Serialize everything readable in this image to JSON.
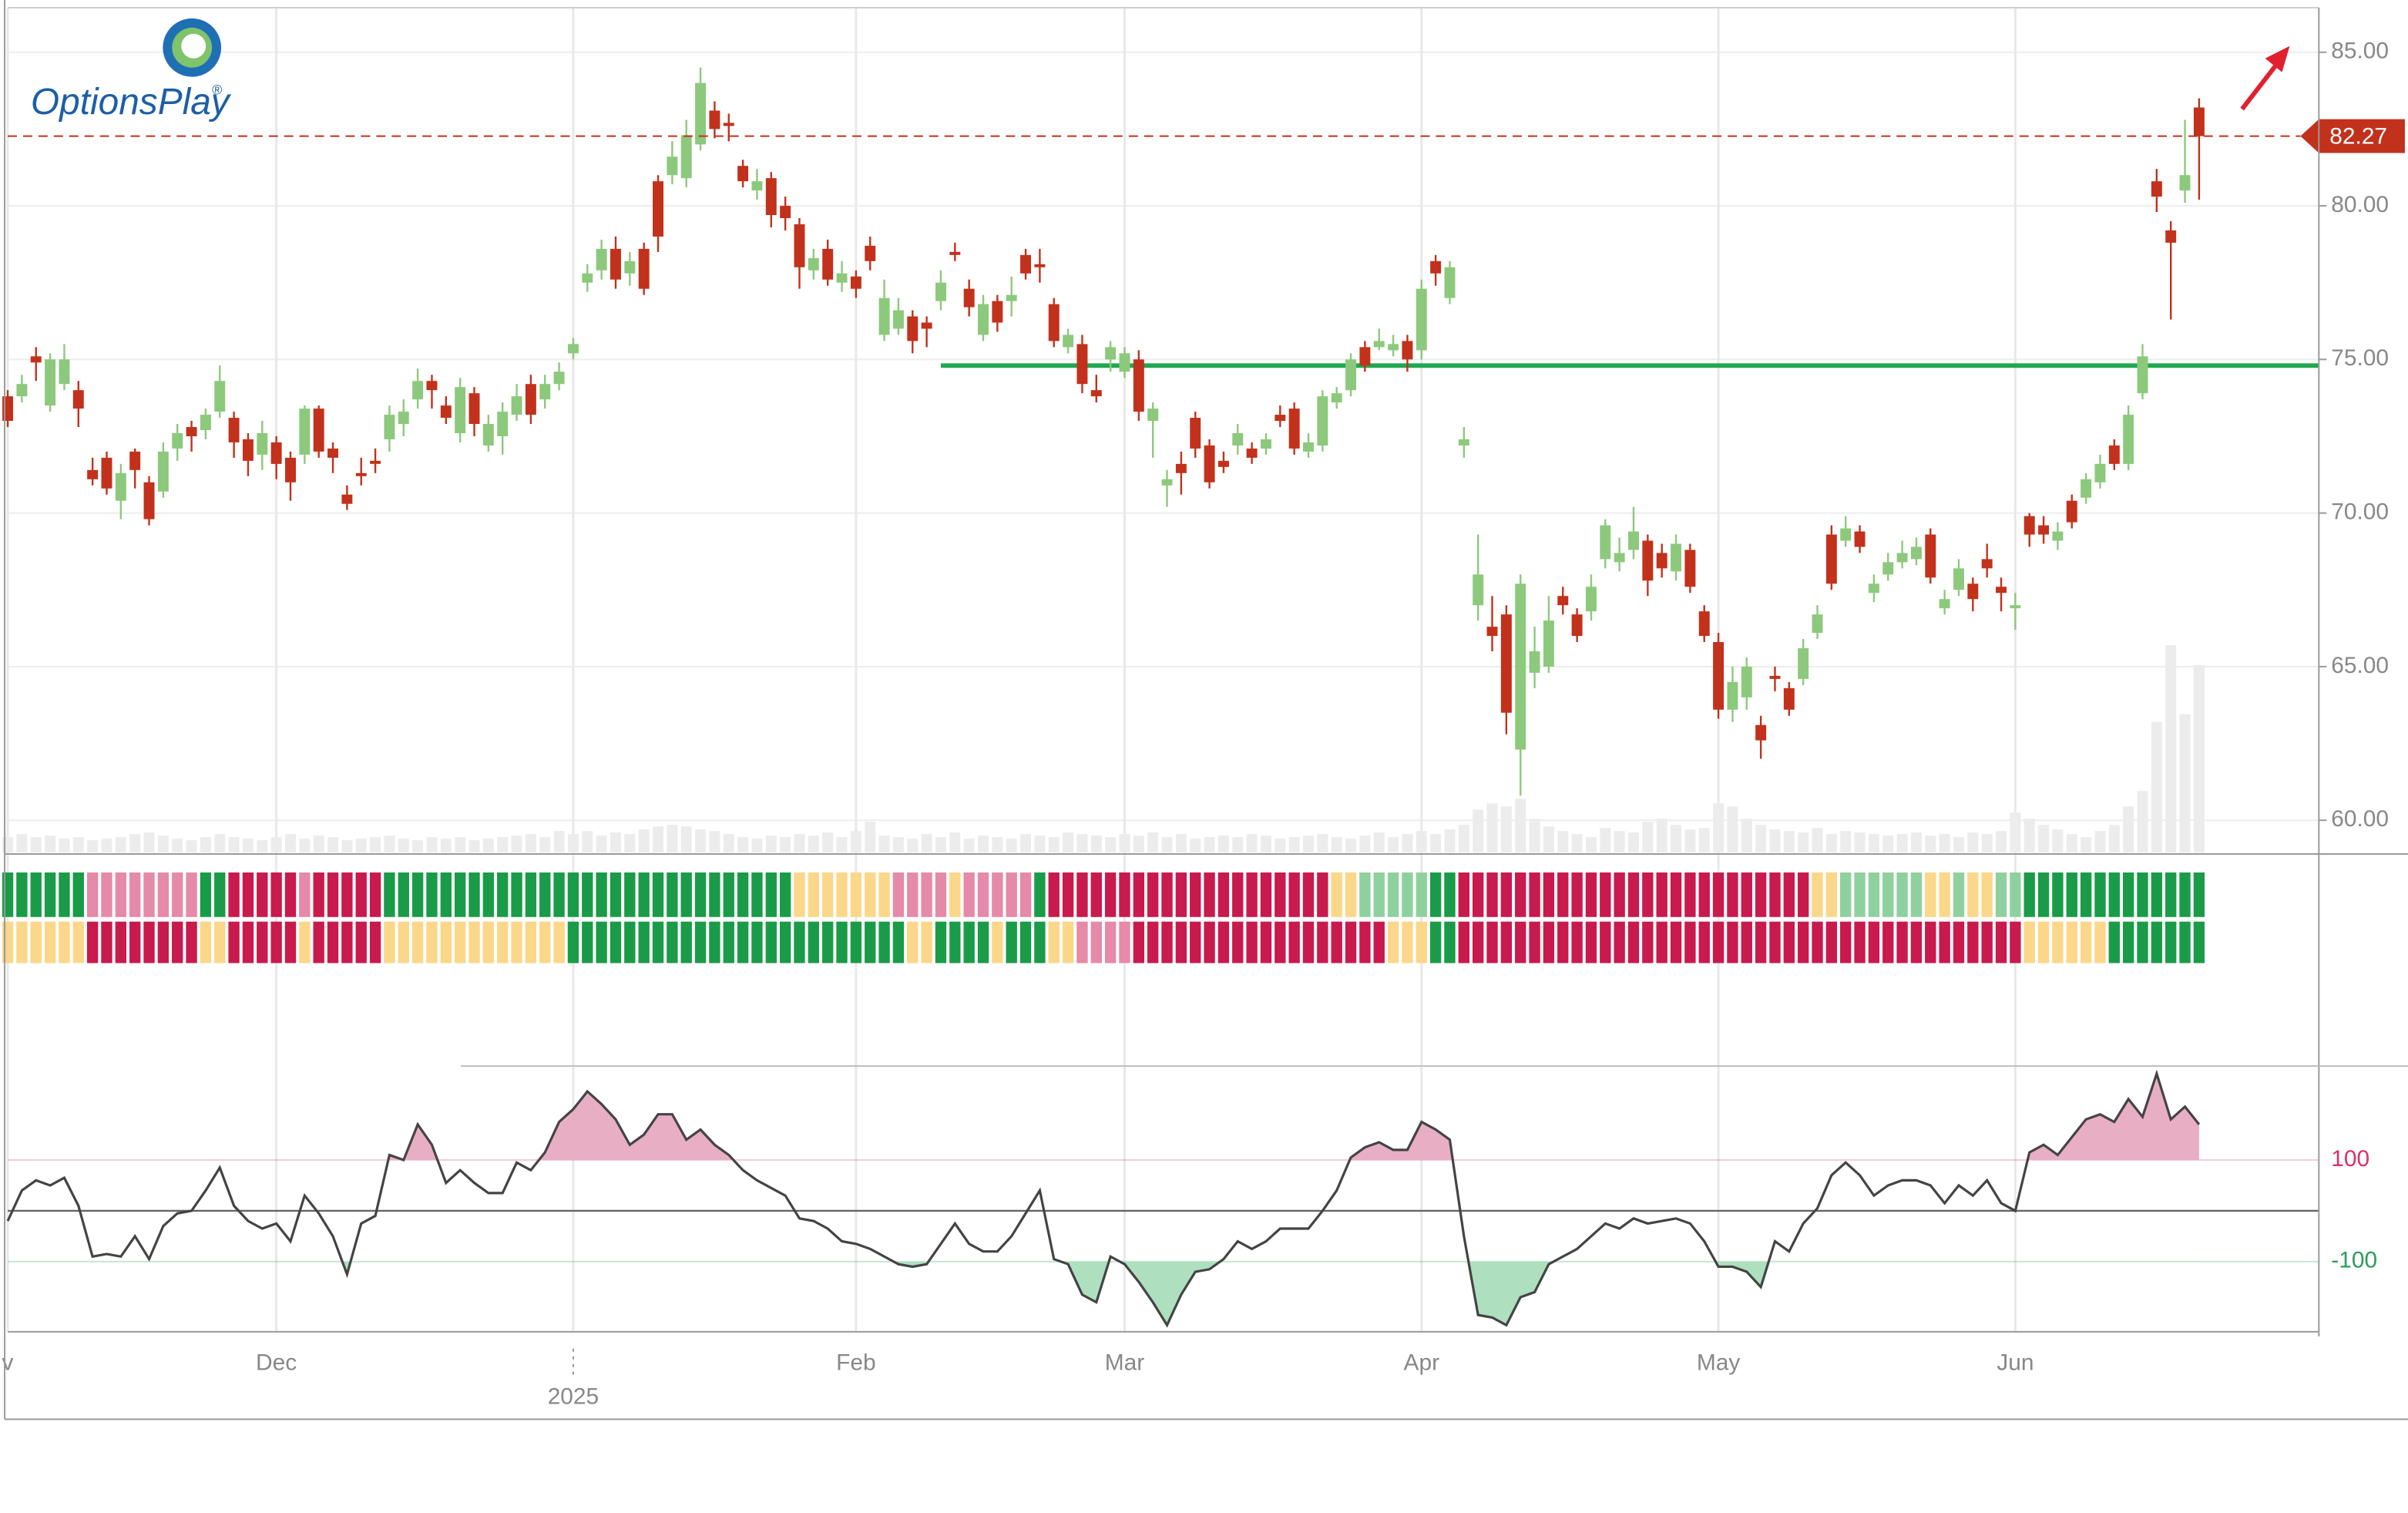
{
  "logo": {
    "text": "OptionsPlay",
    "mark": "®"
  },
  "chart_data": {
    "type": "candlestick",
    "categories": [
      "v",
      null,
      null,
      null,
      null,
      null,
      null,
      null,
      null,
      null,
      null,
      null,
      null,
      null,
      null,
      null,
      null,
      null,
      null,
      "Dec",
      null,
      null,
      null,
      null,
      null,
      null,
      null,
      null,
      null,
      null,
      null,
      null,
      null,
      null,
      null,
      null,
      null,
      null,
      null,
      null,
      "2025",
      null,
      null,
      null,
      null,
      null,
      null,
      null,
      null,
      null,
      null,
      null,
      null,
      null,
      null,
      null,
      null,
      null,
      null,
      null,
      "Feb",
      null,
      null,
      null,
      null,
      null,
      null,
      null,
      null,
      null,
      null,
      null,
      null,
      null,
      null,
      null,
      null,
      null,
      null,
      "Mar",
      null,
      null,
      null,
      null,
      null,
      null,
      null,
      null,
      null,
      null,
      null,
      null,
      null,
      null,
      null,
      null,
      null,
      null,
      null,
      null,
      "Apr",
      null,
      null,
      null,
      null,
      null,
      null,
      null,
      null,
      null,
      null,
      null,
      null,
      null,
      null,
      null,
      null,
      null,
      null,
      null,
      null,
      "May",
      null,
      null,
      null,
      null,
      null,
      null,
      null,
      null,
      null,
      null,
      null,
      null,
      null,
      null,
      null,
      null,
      null,
      null,
      null,
      null,
      "Jun",
      null,
      null,
      null,
      null,
      null,
      null,
      null,
      null,
      null,
      null,
      null,
      null,
      null
    ],
    "open": [
      73.8,
      73.8,
      75.1,
      73.5,
      74.2,
      74.0,
      71.4,
      71.8,
      70.4,
      72.0,
      71.0,
      70.7,
      72.1,
      72.8,
      72.7,
      73.3,
      73.1,
      72.4,
      71.9,
      72.3,
      71.8,
      71.9,
      73.4,
      72.1,
      70.6,
      71.3,
      71.7,
      72.4,
      72.9,
      73.7,
      74.3,
      73.5,
      72.6,
      73.9,
      72.2,
      72.5,
      73.2,
      74.2,
      73.7,
      74.2,
      75.2,
      77.5,
      77.9,
      78.6,
      77.8,
      78.6,
      80.8,
      81.0,
      80.9,
      82.0,
      83.1,
      82.7,
      81.3,
      80.5,
      80.9,
      80.0,
      79.4,
      77.9,
      78.6,
      77.5,
      77.7,
      78.7,
      75.8,
      76.0,
      76.4,
      76.2,
      76.9,
      78.5,
      77.3,
      75.8,
      76.9,
      76.9,
      78.4,
      78.1,
      76.8,
      75.4,
      75.5,
      74.0,
      75.0,
      74.6,
      75.0,
      73.0,
      70.9,
      71.6,
      73.1,
      72.2,
      71.7,
      72.2,
      72.1,
      72.1,
      73.2,
      73.4,
      72.0,
      72.2,
      73.6,
      74.0,
      75.4,
      75.4,
      75.3,
      75.6,
      75.3,
      78.2,
      77.0,
      72.2,
      67.0,
      66.3,
      66.7,
      62.3,
      64.8,
      65.0,
      67.3,
      66.7,
      66.8,
      68.5,
      68.4,
      68.8,
      69.1,
      68.7,
      68.1,
      68.8,
      66.8,
      65.8,
      63.6,
      64.0,
      63.1,
      64.7,
      64.3,
      64.6,
      66.1,
      69.3,
      69.1,
      69.4,
      67.4,
      68.0,
      68.4,
      68.5,
      69.3,
      66.9,
      67.5,
      67.7,
      68.5,
      67.6,
      66.9,
      69.9,
      69.6,
      69.1,
      70.4,
      70.5,
      71.0,
      72.2,
      71.6,
      73.9,
      80.8,
      79.2,
      80.5,
      83.2
    ],
    "high": [
      74.0,
      74.5,
      75.4,
      75.2,
      75.5,
      74.3,
      71.8,
      72.0,
      71.6,
      72.1,
      71.2,
      72.3,
      72.9,
      73.0,
      73.4,
      74.8,
      73.3,
      72.6,
      73.0,
      72.5,
      72.0,
      73.5,
      73.5,
      72.3,
      70.9,
      71.8,
      72.1,
      73.5,
      73.7,
      74.7,
      74.5,
      73.8,
      74.4,
      74.1,
      73.2,
      73.6,
      74.2,
      74.5,
      74.5,
      74.9,
      75.7,
      78.1,
      78.9,
      79.0,
      78.5,
      78.8,
      81.0,
      82.1,
      82.8,
      84.5,
      83.4,
      83.0,
      81.5,
      81.2,
      81.1,
      80.3,
      79.6,
      78.6,
      78.9,
      78.2,
      77.9,
      79.0,
      77.6,
      77.0,
      76.6,
      76.4,
      77.9,
      78.8,
      77.6,
      77.1,
      77.1,
      77.7,
      78.6,
      78.6,
      77.0,
      76.0,
      75.8,
      74.5,
      75.6,
      75.4,
      75.3,
      73.6,
      71.4,
      72.0,
      73.3,
      72.4,
      72.0,
      72.9,
      72.3,
      72.6,
      73.5,
      73.6,
      72.6,
      74.0,
      74.1,
      75.2,
      75.6,
      76.0,
      75.8,
      75.8,
      77.6,
      78.4,
      78.2,
      72.8,
      69.3,
      67.3,
      67.0,
      68.0,
      66.3,
      67.3,
      67.6,
      66.9,
      68.0,
      69.8,
      69.2,
      70.2,
      69.3,
      69.0,
      69.3,
      69.0,
      67.0,
      66.1,
      65.0,
      65.3,
      63.4,
      65.0,
      64.5,
      65.9,
      67.0,
      69.6,
      69.9,
      69.6,
      68.0,
      68.7,
      69.1,
      69.2,
      69.5,
      67.5,
      68.5,
      67.9,
      69.0,
      67.9,
      67.4,
      70.0,
      69.9,
      69.7,
      70.6,
      71.3,
      71.9,
      72.4,
      73.5,
      75.5,
      81.2,
      79.5,
      82.8,
      83.5
    ],
    "low": [
      72.8,
      73.6,
      74.3,
      73.3,
      74.0,
      72.8,
      70.9,
      70.6,
      69.8,
      70.8,
      69.6,
      70.5,
      71.7,
      72.0,
      72.4,
      73.1,
      71.8,
      71.2,
      71.4,
      71.1,
      70.4,
      71.6,
      71.8,
      71.3,
      70.1,
      70.9,
      71.3,
      72.0,
      72.5,
      73.4,
      73.4,
      72.9,
      72.3,
      72.5,
      72.0,
      71.9,
      73.0,
      72.9,
      73.4,
      74.0,
      75.0,
      77.2,
      77.6,
      77.3,
      77.4,
      77.1,
      78.5,
      80.7,
      80.6,
      81.8,
      82.2,
      82.1,
      80.6,
      80.2,
      79.3,
      79.2,
      77.3,
      77.6,
      77.4,
      77.2,
      77.0,
      77.9,
      75.6,
      75.8,
      75.2,
      75.4,
      76.6,
      78.2,
      76.4,
      75.6,
      75.9,
      76.4,
      77.6,
      77.5,
      75.4,
      75.2,
      73.9,
      73.6,
      74.6,
      74.4,
      73.0,
      71.8,
      70.2,
      70.6,
      71.8,
      70.8,
      71.3,
      71.9,
      71.6,
      71.9,
      72.8,
      71.9,
      71.8,
      72.0,
      73.4,
      73.8,
      74.6,
      75.3,
      75.1,
      74.6,
      75.0,
      77.4,
      76.8,
      71.8,
      66.5,
      65.5,
      62.8,
      60.8,
      64.3,
      64.8,
      66.7,
      65.8,
      66.5,
      68.2,
      68.1,
      68.5,
      67.3,
      67.9,
      67.8,
      67.4,
      65.8,
      63.3,
      63.2,
      63.6,
      62.0,
      64.2,
      63.4,
      64.4,
      65.9,
      67.5,
      68.9,
      68.7,
      67.1,
      67.8,
      68.2,
      68.3,
      67.7,
      66.7,
      67.3,
      66.8,
      67.9,
      66.8,
      66.2,
      68.9,
      69.0,
      68.8,
      69.5,
      70.3,
      70.8,
      71.4,
      71.4,
      73.7,
      79.8,
      76.3,
      80.1,
      80.2
    ],
    "close": [
      73.0,
      74.2,
      74.9,
      75.0,
      75.0,
      73.4,
      71.1,
      70.8,
      71.3,
      71.4,
      69.8,
      72.0,
      72.6,
      72.5,
      73.2,
      74.3,
      72.3,
      71.7,
      72.6,
      71.6,
      71.0,
      73.4,
      72.0,
      71.8,
      70.3,
      71.2,
      71.6,
      73.2,
      73.3,
      74.3,
      74.0,
      73.1,
      74.1,
      72.9,
      72.9,
      73.3,
      73.8,
      73.2,
      74.2,
      74.6,
      75.5,
      77.8,
      78.6,
      77.6,
      78.2,
      77.3,
      79.0,
      81.6,
      82.3,
      84.0,
      82.5,
      82.6,
      80.8,
      80.8,
      79.7,
      79.6,
      78.0,
      78.3,
      77.6,
      77.8,
      77.3,
      78.2,
      77.0,
      76.6,
      75.6,
      76.0,
      77.5,
      78.4,
      76.7,
      76.8,
      76.2,
      77.1,
      77.8,
      78.0,
      75.6,
      75.8,
      74.2,
      73.8,
      75.4,
      75.2,
      73.3,
      73.4,
      71.1,
      71.3,
      72.1,
      71.0,
      71.5,
      72.6,
      71.8,
      72.4,
      73.0,
      72.1,
      72.3,
      73.8,
      73.9,
      75.0,
      74.8,
      75.6,
      75.5,
      75.0,
      77.3,
      77.8,
      78.0,
      72.4,
      68.0,
      66.0,
      63.5,
      67.7,
      65.5,
      66.5,
      67.0,
      66.0,
      67.6,
      69.6,
      68.7,
      69.4,
      67.8,
      68.2,
      69.0,
      67.6,
      66.0,
      63.6,
      64.5,
      65.0,
      62.6,
      64.6,
      63.6,
      65.6,
      66.7,
      67.7,
      69.5,
      68.9,
      67.7,
      68.4,
      68.7,
      68.9,
      67.9,
      67.2,
      68.2,
      67.2,
      68.2,
      67.4,
      67.0,
      69.3,
      69.3,
      69.4,
      69.7,
      71.1,
      71.6,
      71.6,
      73.2,
      75.1,
      80.3,
      78.8,
      81.0,
      82.27
    ],
    "up_color": "#8cc97c",
    "down_color": "#c2311b",
    "ylim": [
      58.9,
      86.45
    ],
    "yticks": [
      {
        "value": 60,
        "label": "60.00"
      },
      {
        "value": 65,
        "label": "65.00"
      },
      {
        "value": 70,
        "label": "70.00"
      },
      {
        "value": 75,
        "label": "75.00"
      },
      {
        "value": 80,
        "label": "80.00"
      },
      {
        "value": 85,
        "label": "85.00"
      }
    ],
    "grid": true,
    "last_price": 82.27,
    "last_price_color": "#c2311b",
    "level_line": {
      "value": 74.8,
      "from": 66,
      "color": "#1fa84f"
    },
    "volume": {
      "color": "#ececec",
      "values": [
        10,
        12,
        10,
        11,
        9,
        10,
        8,
        9,
        10,
        12,
        13,
        11,
        9,
        8,
        10,
        12,
        10,
        9,
        8,
        10,
        12,
        9,
        11,
        10,
        8,
        9,
        10,
        11,
        9,
        8,
        10,
        9,
        10,
        8,
        9,
        10,
        11,
        12,
        10,
        14,
        12,
        14,
        11,
        13,
        12,
        15,
        17,
        18,
        17,
        15,
        14,
        12,
        10,
        9,
        11,
        10,
        12,
        11,
        13,
        10,
        14,
        20,
        11,
        10,
        9,
        12,
        10,
        13,
        9,
        11,
        10,
        9,
        12,
        11,
        10,
        13,
        12,
        11,
        10,
        12,
        11,
        13,
        10,
        12,
        9,
        10,
        11,
        10,
        12,
        11,
        9,
        10,
        11,
        12,
        10,
        9,
        11,
        13,
        10,
        12,
        14,
        12,
        15,
        18,
        28,
        32,
        30,
        35,
        22,
        17,
        14,
        12,
        10,
        16,
        14,
        13,
        20,
        22,
        18,
        15,
        16,
        32,
        30,
        22,
        18,
        15,
        14,
        13,
        16,
        12,
        14,
        13,
        12,
        11,
        12,
        13,
        11,
        12,
        10,
        13,
        12,
        14,
        26,
        22,
        18,
        15,
        12,
        10,
        14,
        18,
        30,
        40,
        85,
        135,
        90,
        122
      ]
    },
    "heat_strips": [
      {
        "runs": [
          {
            "color": "#1a9b48",
            "length": 6
          },
          {
            "color": "#e58aa8",
            "length": 8
          },
          {
            "color": "#1a9b48",
            "length": 2
          },
          {
            "color": "#c81a4c",
            "length": 5
          },
          {
            "color": "#e58aa8",
            "length": 1
          },
          {
            "color": "#c81a4c",
            "length": 5
          },
          {
            "color": "#1a9b48",
            "length": 29
          },
          {
            "color": "#fbd78a",
            "length": 7
          },
          {
            "color": "#e58aa8",
            "length": 4
          },
          {
            "color": "#fbd78a",
            "length": 1
          },
          {
            "color": "#e58aa8",
            "length": 5
          },
          {
            "color": "#1a9b48",
            "length": 1
          },
          {
            "color": "#c81a4c",
            "length": 20
          },
          {
            "color": "#fbd78a",
            "length": 2
          },
          {
            "color": "#8fd19e",
            "length": 5
          },
          {
            "color": "#1a9b48",
            "length": 2
          },
          {
            "color": "#c81a4c",
            "length": 25
          },
          {
            "color": "#fbd78a",
            "length": 2
          },
          {
            "color": "#8fd19e",
            "length": 6
          },
          {
            "color": "#fbd78a",
            "length": 2
          },
          {
            "color": "#8fd19e",
            "length": 1
          },
          {
            "color": "#fbd78a",
            "length": 2
          },
          {
            "color": "#8fd19e",
            "length": 2
          },
          {
            "color": "#1a9b48",
            "length": 13
          }
        ]
      },
      {
        "runs": [
          {
            "color": "#fbd78a",
            "length": 6
          },
          {
            "color": "#c81a4c",
            "length": 8
          },
          {
            "color": "#fbd78a",
            "length": 2
          },
          {
            "color": "#c81a4c",
            "length": 5
          },
          {
            "color": "#fbd78a",
            "length": 1
          },
          {
            "color": "#c81a4c",
            "length": 5
          },
          {
            "color": "#fbd78a",
            "length": 13
          },
          {
            "color": "#1a9b48",
            "length": 24
          },
          {
            "color": "#fbd78a",
            "length": 2
          },
          {
            "color": "#1a9b48",
            "length": 4
          },
          {
            "color": "#fbd78a",
            "length": 1
          },
          {
            "color": "#1a9b48",
            "length": 3
          },
          {
            "color": "#fbd78a",
            "length": 2
          },
          {
            "color": "#e58aa8",
            "length": 4
          },
          {
            "color": "#c81a4c",
            "length": 18
          },
          {
            "color": "#fbd78a",
            "length": 3
          },
          {
            "color": "#1a9b48",
            "length": 2
          },
          {
            "color": "#c81a4c",
            "length": 40
          },
          {
            "color": "#fbd78a",
            "length": 6
          },
          {
            "color": "#1a9b48",
            "length": 7
          }
        ]
      }
    ],
    "indicator": {
      "type": "line",
      "color": "#444444",
      "ylim": [
        -238,
        282
      ],
      "yticks": [
        100,
        -100
      ],
      "ytick_colors": [
        "#d6336c",
        "#2a9d5c"
      ],
      "zero": 0,
      "upper_fill": "#e8afc4",
      "lower_fill": "#aee0c0",
      "values": [
        -20,
        40,
        60,
        50,
        65,
        10,
        -90,
        -85,
        -90,
        -50,
        -95,
        -30,
        -5,
        0,
        40,
        85,
        10,
        -20,
        -35,
        -25,
        -60,
        30,
        -5,
        -50,
        -125,
        -25,
        -10,
        110,
        100,
        170,
        130,
        55,
        80,
        55,
        35,
        35,
        95,
        80,
        115,
        175,
        200,
        235,
        210,
        180,
        130,
        150,
        190,
        190,
        140,
        160,
        130,
        110,
        80,
        60,
        45,
        30,
        -15,
        -20,
        -35,
        -60,
        -65,
        -75,
        -90,
        -105,
        -110,
        -105,
        -65,
        -25,
        -65,
        -80,
        -80,
        -50,
        -5,
        40,
        -95,
        -105,
        -165,
        -180,
        -90,
        -105,
        -140,
        -180,
        -225,
        -165,
        -120,
        -115,
        -95,
        -60,
        -75,
        -60,
        -35,
        -35,
        -35,
        0,
        40,
        105,
        125,
        135,
        120,
        120,
        175,
        160,
        140,
        -50,
        -205,
        -210,
        -225,
        -170,
        -160,
        -105,
        -90,
        -75,
        -50,
        -25,
        -35,
        -15,
        -25,
        -20,
        -15,
        -25,
        -60,
        -110,
        -110,
        -120,
        -150,
        -60,
        -80,
        -25,
        5,
        70,
        95,
        70,
        30,
        50,
        60,
        60,
        50,
        15,
        50,
        30,
        60,
        15,
        0,
        115,
        130,
        110,
        145,
        180,
        190,
        175,
        220,
        185,
        270,
        180,
        205,
        170
      ]
    }
  }
}
